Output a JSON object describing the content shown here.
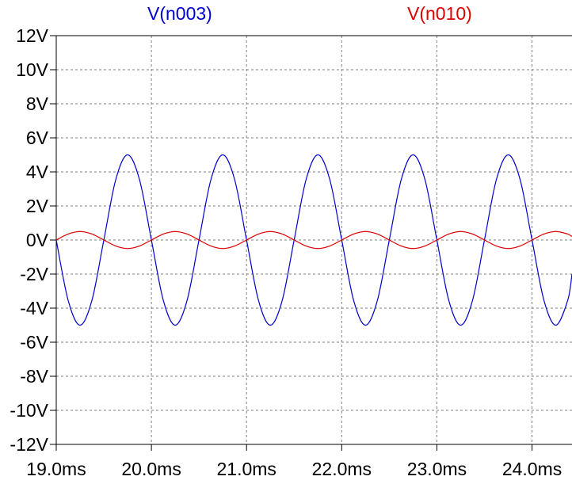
{
  "chart_data": {
    "type": "line",
    "title": "",
    "xlabel": "",
    "ylabel": "",
    "xlim": [
      19.0,
      24.42
    ],
    "ylim": [
      -12,
      12
    ],
    "grid": true,
    "x_ticks": [
      "19.0ms",
      "20.0ms",
      "21.0ms",
      "22.0ms",
      "23.0ms",
      "24.0ms"
    ],
    "x_tick_values": [
      19.0,
      20.0,
      21.0,
      22.0,
      23.0,
      24.0
    ],
    "y_ticks": [
      "12V",
      "10V",
      "8V",
      "6V",
      "4V",
      "2V",
      "0V",
      "-2V",
      "-4V",
      "-6V",
      "-8V",
      "-10V",
      "-12V"
    ],
    "y_tick_values": [
      12,
      10,
      8,
      6,
      4,
      2,
      0,
      -2,
      -4,
      -6,
      -8,
      -10,
      -12
    ],
    "series": [
      {
        "name": "V(n003)",
        "color": "#0000cc",
        "x": [
          19.0,
          19.125,
          19.25,
          19.375,
          19.5,
          19.625,
          19.75,
          19.875,
          20.0,
          20.125,
          20.25,
          20.375,
          20.5,
          20.625,
          20.75,
          20.875,
          21.0,
          21.125,
          21.25,
          21.375,
          21.5,
          21.625,
          21.75,
          21.875,
          22.0,
          22.125,
          22.25,
          22.375,
          22.5,
          22.625,
          22.75,
          22.875,
          23.0,
          23.125,
          23.25,
          23.375,
          23.5,
          23.625,
          23.75,
          23.875,
          24.0,
          24.125,
          24.25,
          24.375,
          24.42
        ],
        "y": [
          0,
          -3.54,
          -5.0,
          -3.54,
          0,
          3.54,
          5.0,
          3.54,
          0,
          -3.54,
          -5.0,
          -3.54,
          0,
          3.54,
          5.0,
          3.54,
          0,
          -3.54,
          -5.0,
          -3.54,
          0,
          3.54,
          5.0,
          3.54,
          0,
          -3.54,
          -5.0,
          -3.54,
          0,
          3.54,
          5.0,
          3.54,
          0,
          -3.54,
          -5.0,
          -3.54,
          0,
          3.54,
          5.0,
          3.54,
          0,
          -3.54,
          -5.0,
          -3.54,
          -2.0
        ]
      },
      {
        "name": "V(n010)",
        "color": "#dd0000",
        "x": [
          19.0,
          19.125,
          19.25,
          19.375,
          19.5,
          19.625,
          19.75,
          19.875,
          20.0,
          20.125,
          20.25,
          20.375,
          20.5,
          20.625,
          20.75,
          20.875,
          21.0,
          21.125,
          21.25,
          21.375,
          21.5,
          21.625,
          21.75,
          21.875,
          22.0,
          22.125,
          22.25,
          22.375,
          22.5,
          22.625,
          22.75,
          22.875,
          23.0,
          23.125,
          23.25,
          23.375,
          23.5,
          23.625,
          23.75,
          23.875,
          24.0,
          24.125,
          24.25,
          24.375,
          24.42
        ],
        "y": [
          0,
          0.35,
          0.5,
          0.35,
          0,
          -0.35,
          -0.5,
          -0.35,
          0,
          0.35,
          0.5,
          0.35,
          0,
          -0.35,
          -0.5,
          -0.35,
          0,
          0.35,
          0.5,
          0.35,
          0,
          -0.35,
          -0.5,
          -0.35,
          0,
          0.35,
          0.5,
          0.35,
          0,
          -0.35,
          -0.5,
          -0.35,
          0,
          0.35,
          0.5,
          0.35,
          0,
          -0.35,
          -0.5,
          -0.35,
          0,
          0.35,
          0.5,
          0.35,
          0.2
        ]
      }
    ]
  }
}
